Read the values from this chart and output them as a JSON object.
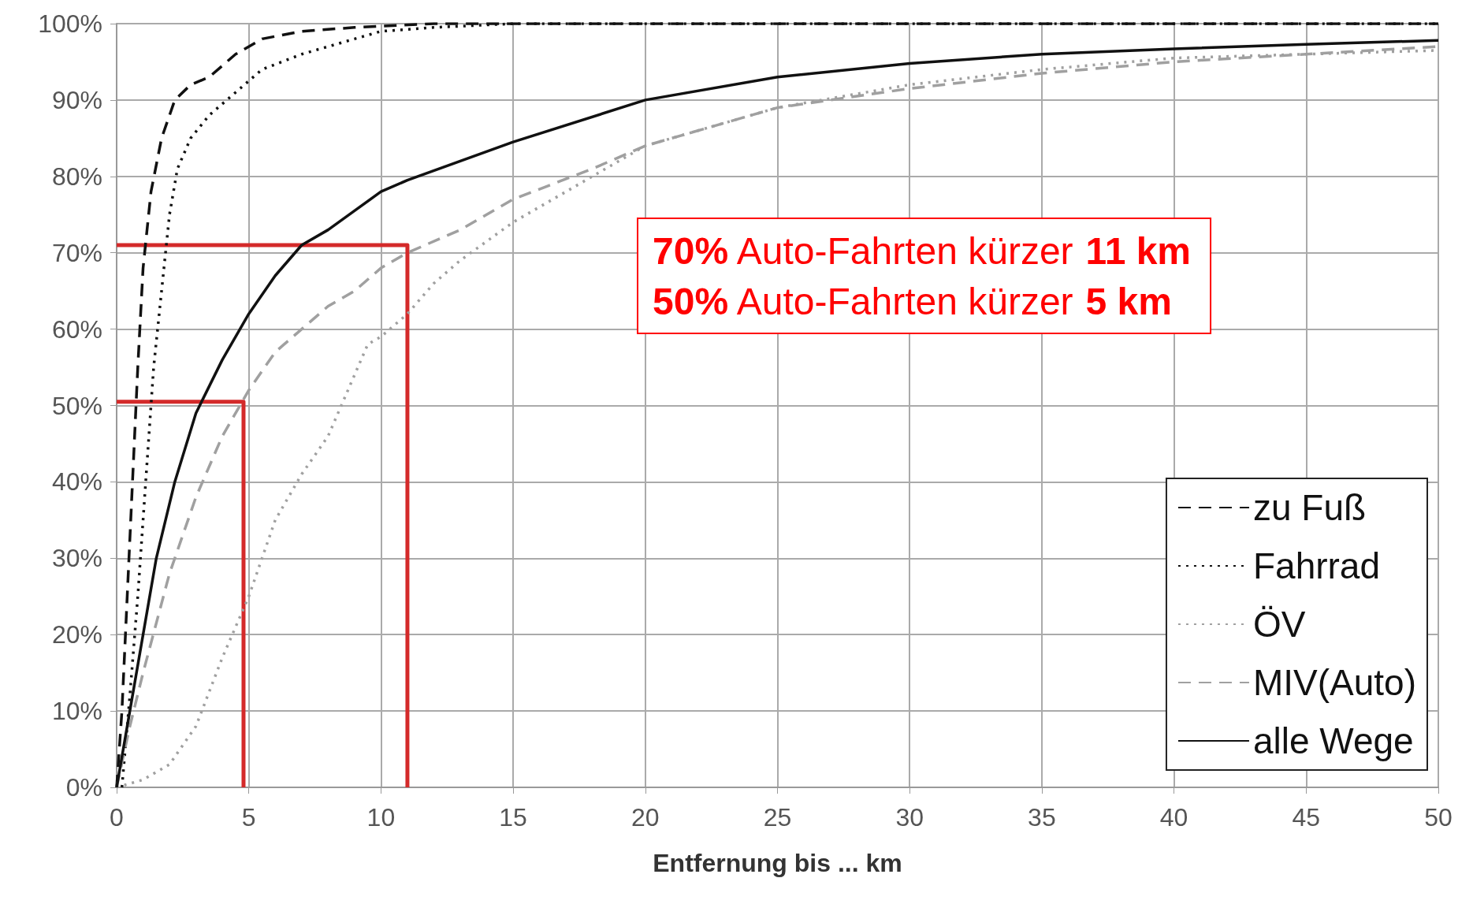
{
  "chart_data": {
    "type": "line",
    "xlabel": "Entfernung bis ... km",
    "xlim": [
      0,
      50
    ],
    "xticks": [
      0,
      5,
      10,
      15,
      20,
      25,
      30,
      35,
      40,
      45,
      50
    ],
    "ylim": [
      0,
      100
    ],
    "yticks": [
      {
        "value": 0,
        "label": "0%"
      },
      {
        "value": 10,
        "label": "10%"
      },
      {
        "value": 20,
        "label": "20%"
      },
      {
        "value": 30,
        "label": "30%"
      },
      {
        "value": 40,
        "label": "40%"
      },
      {
        "value": 50,
        "label": "50%"
      },
      {
        "value": 60,
        "label": "60%"
      },
      {
        "value": 70,
        "label": "70%"
      },
      {
        "value": 80,
        "label": "80%"
      },
      {
        "value": 90,
        "label": "90%"
      },
      {
        "value": 100,
        "label": "100%"
      }
    ],
    "grid": true,
    "legend": "bottom right",
    "marker": "none",
    "annotations": [
      "70% Auto-Fahrten kürzer 11 km",
      "50% Auto-Fahrten kürzer 5 km"
    ],
    "series": [
      {
        "name": "zu Fuß",
        "color": "#111111",
        "line_style": "dashed",
        "x": [
          0,
          0.2,
          0.4,
          0.6,
          0.8,
          1.0,
          1.3,
          1.7,
          2.2,
          2.8,
          3.5,
          4.5,
          5.5,
          7,
          9,
          12,
          50
        ],
        "values": [
          0,
          10,
          25,
          40,
          55,
          68,
          78,
          85,
          90,
          92,
          93,
          96,
          98,
          99,
          99.5,
          100,
          100
        ]
      },
      {
        "name": "Fahrrad",
        "color": "#111111",
        "line_style": "dotted",
        "x": [
          0.2,
          0.5,
          0.8,
          1.1,
          1.4,
          1.7,
          2.0,
          2.3,
          2.8,
          3.5,
          4.5,
          5.5,
          7,
          9,
          10,
          12,
          15,
          50
        ],
        "values": [
          0,
          12,
          25,
          40,
          55,
          65,
          75,
          81,
          85,
          88,
          91,
          94,
          96,
          98,
          99,
          99.5,
          100,
          100
        ]
      },
      {
        "name": "ÖV",
        "color": "#a0a0a0",
        "line_style": "dotted",
        "x": [
          0,
          1,
          2,
          3,
          4,
          5,
          6,
          7,
          8,
          9,
          9.5,
          10,
          11,
          12,
          13,
          15,
          17,
          20,
          25,
          30,
          35,
          40,
          45,
          50
        ],
        "values": [
          0,
          1,
          3,
          8,
          17,
          25,
          35,
          41,
          46,
          54,
          58,
          59,
          62,
          66,
          69,
          74,
          78,
          84,
          89,
          92,
          94,
          95.5,
          96,
          96.5
        ]
      },
      {
        "name": "MIV(Auto)",
        "color": "#a0a0a0",
        "line_style": "dashed",
        "x": [
          0,
          0.5,
          1,
          2,
          3,
          4,
          5,
          6,
          7,
          8,
          9,
          10,
          11,
          13,
          15,
          18,
          20,
          25,
          30,
          35,
          40,
          45,
          50
        ],
        "values": [
          0,
          8,
          15,
          28,
          38,
          46,
          52,
          57,
          60,
          63,
          65,
          68,
          70,
          73,
          77,
          81,
          84,
          89,
          91.5,
          93.5,
          95,
          96,
          97
        ]
      },
      {
        "name": "alle Wege",
        "color": "#111111",
        "line_style": "solid",
        "x": [
          0,
          0.5,
          1,
          1.5,
          2.2,
          3,
          4,
          5,
          6,
          7,
          8,
          9,
          10,
          11,
          13,
          15,
          20,
          25,
          30,
          35,
          40,
          45,
          50
        ],
        "values": [
          0,
          10,
          20,
          30,
          40,
          49,
          56,
          62,
          67,
          71,
          73,
          75.5,
          78,
          79.5,
          82,
          84.5,
          90,
          93,
          94.8,
          96,
          96.7,
          97.3,
          97.8
        ]
      },
      {
        "color": "#d42a2a",
        "line_style": "solid",
        "x": [
          0,
          4.8,
          4.8
        ],
        "values": [
          50.5,
          50.5,
          0
        ]
      },
      {
        "color": "#d42a2a",
        "line_style": "solid",
        "x": [
          0,
          11,
          11
        ],
        "values": [
          71,
          71,
          0
        ]
      }
    ]
  }
}
